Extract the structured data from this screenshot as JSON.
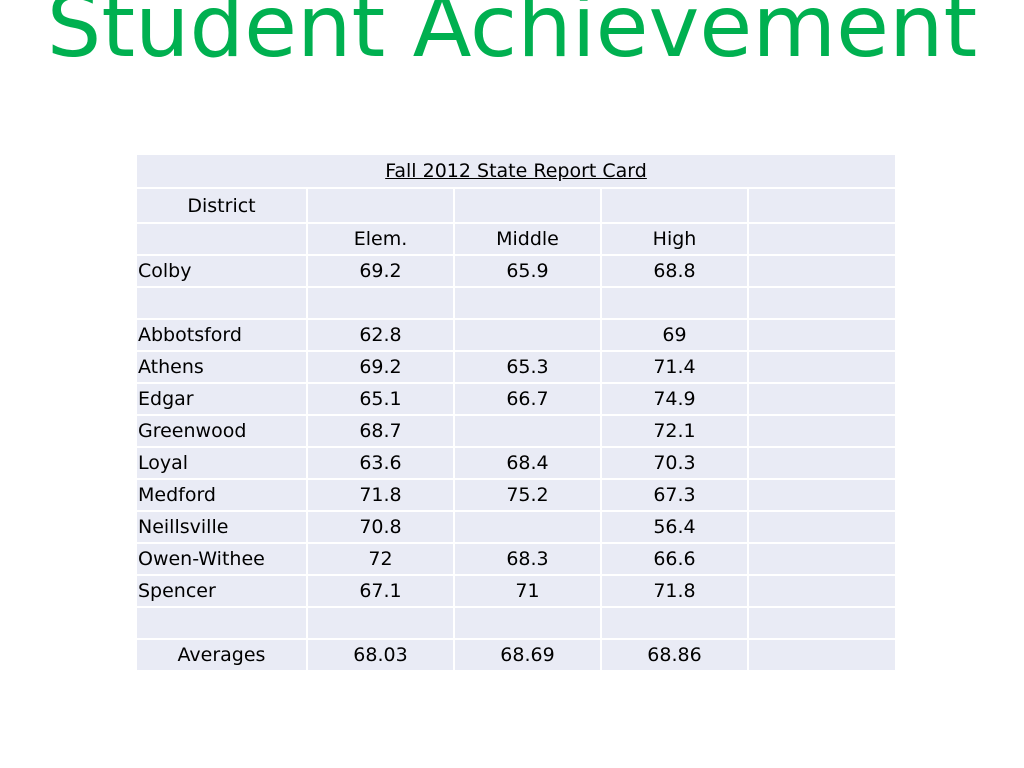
{
  "slide": {
    "title": "Student Achievement"
  },
  "table": {
    "title": "Fall 2012 State Report Card",
    "district_header": "District",
    "columns": [
      "Elem.",
      "Middle",
      "High"
    ],
    "rows": [
      {
        "district": "Colby",
        "elem": "69.2",
        "middle": "65.9",
        "high": "68.8"
      },
      {
        "district": "",
        "elem": "",
        "middle": "",
        "high": ""
      },
      {
        "district": "Abbotsford",
        "elem": "62.8",
        "middle": "",
        "high": "69"
      },
      {
        "district": "Athens",
        "elem": "69.2",
        "middle": "65.3",
        "high": "71.4"
      },
      {
        "district": "Edgar",
        "elem": "65.1",
        "middle": "66.7",
        "high": "74.9"
      },
      {
        "district": "Greenwood",
        "elem": "68.7",
        "middle": "",
        "high": "72.1"
      },
      {
        "district": "Loyal",
        "elem": "63.6",
        "middle": "68.4",
        "high": "70.3"
      },
      {
        "district": "Medford",
        "elem": "71.8",
        "middle": "75.2",
        "high": "67.3"
      },
      {
        "district": "Neillsville",
        "elem": "70.8",
        "middle": "",
        "high": "56.4"
      },
      {
        "district": "Owen-Withee",
        "elem": "72",
        "middle": "68.3",
        "high": "66.6"
      },
      {
        "district": "Spencer",
        "elem": "67.1",
        "middle": "71",
        "high": "71.8"
      },
      {
        "district": "",
        "elem": "",
        "middle": "",
        "high": ""
      }
    ],
    "averages": {
      "label": "Averages",
      "elem": "68.03",
      "middle": "68.69",
      "high": "68.86"
    }
  }
}
